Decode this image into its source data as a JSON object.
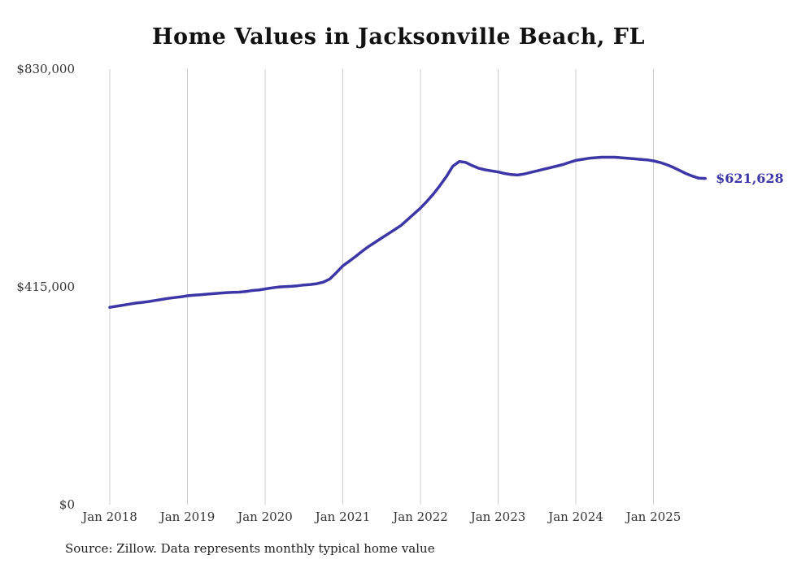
{
  "title": "Home Values in Jacksonville Beach, FL",
  "source_note": "Source: Zillow. Data represents monthly typical home value",
  "end_label": "$621,628",
  "colors": {
    "line": "#3d36a6",
    "grid": "#cccccc",
    "axis_text": "#333333",
    "title": "#111111"
  },
  "chart_data": {
    "type": "line",
    "title": "Home Values in Jacksonville Beach, FL",
    "xlabel": "",
    "ylabel": "",
    "x_start": "2018-01",
    "x_end": "2025-09",
    "x_interval": "monthly",
    "x_tick_labels": [
      "Jan 2018",
      "Jan 2019",
      "Jan 2020",
      "Jan 2021",
      "Jan 2022",
      "Jan 2023",
      "Jan 2024",
      "Jan 2025"
    ],
    "y_tick_labels": [
      "$0",
      "$415,000",
      "$830,000"
    ],
    "y_ticks": [
      0,
      415000,
      830000
    ],
    "ylim": [
      0,
      830000
    ],
    "grid": "vertical-at-january",
    "legend": "none",
    "final_value": 621628,
    "series": [
      {
        "name": "Typical home value",
        "values": [
          376000,
          378000,
          380000,
          382000,
          384000,
          385500,
          387000,
          389000,
          391000,
          393000,
          394500,
          396000,
          398000,
          399000,
          400000,
          401000,
          402000,
          403000,
          404000,
          404500,
          405000,
          406000,
          408000,
          409000,
          411000,
          413000,
          414500,
          415500,
          416000,
          417000,
          418500,
          419500,
          421000,
          424000,
          430000,
          442000,
          455000,
          464000,
          473000,
          483000,
          492000,
          500000,
          508000,
          516000,
          524000,
          532000,
          543000,
          554000,
          565000,
          578000,
          592000,
          608000,
          625000,
          645000,
          654000,
          652000,
          646000,
          641000,
          638000,
          636000,
          634000,
          631000,
          629000,
          628000,
          630000,
          633000,
          636000,
          639000,
          642000,
          645000,
          648000,
          652000,
          656000,
          658000,
          660000,
          661000,
          662000,
          662000,
          662000,
          661000,
          660000,
          659000,
          658000,
          657000,
          655000,
          652000,
          648000,
          643000,
          637000,
          631000,
          626000,
          622000,
          621628
        ]
      }
    ]
  }
}
